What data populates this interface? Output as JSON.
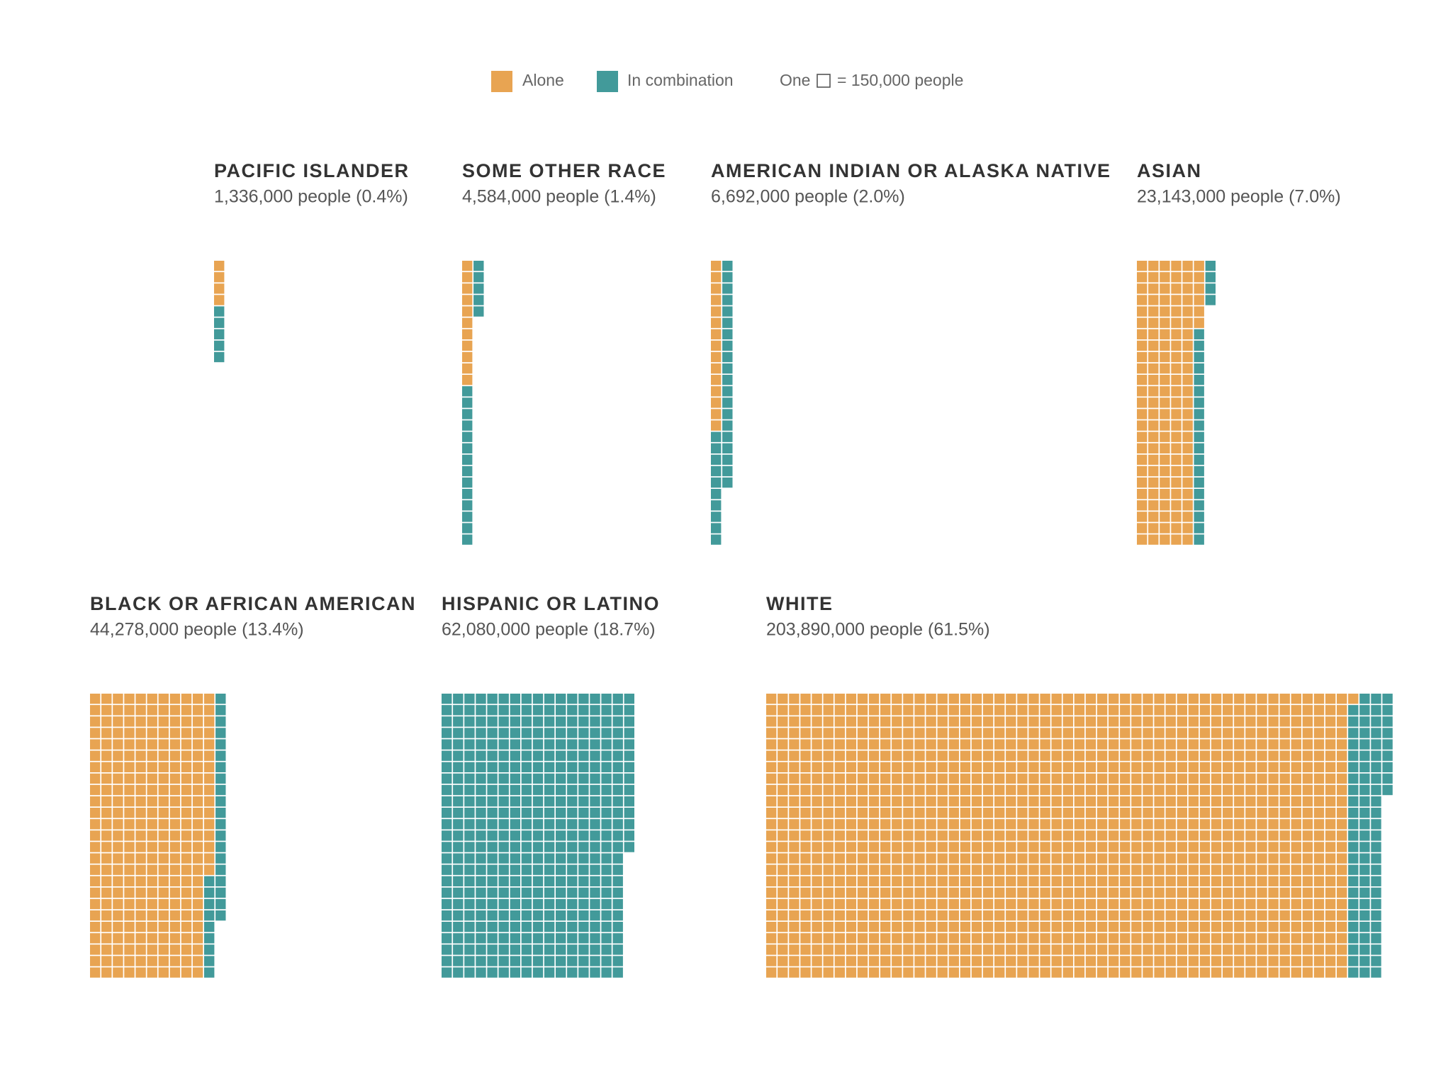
{
  "chart_data": {
    "type": "waffle",
    "series": [
      {
        "name": "Alone",
        "color": "#e8a452",
        "values": [
          600000,
          1650000,
          2250000,
          19650000,
          39900000,
          0,
          191400000
        ]
      },
      {
        "name": "In combination",
        "color": "#429a9a",
        "values": [
          750000,
          2850000,
          4500000,
          3450000,
          4350000,
          62100000,
          12450000
        ]
      }
    ],
    "unit_prefix": "One",
    "unit": {
      "value": 150000,
      "label": "= 150,000 people"
    },
    "categories": [
      "PACIFIC ISLANDER",
      "SOME OTHER RACE",
      "AMERICAN INDIAN OR ALASKA NATIVE",
      "ASIAN",
      "BLACK OR AFRICAN AMERICAN",
      "HISPANIC OR LATINO",
      "WHITE"
    ],
    "subtitles": [
      "1,336,000 people (0.4%)",
      "4,584,000 people (1.4%)",
      "6,692,000 people (2.0%)",
      "23,143,000 people (7.0%)",
      "44,278,000 people (13.4%)",
      "62,080,000 people (18.7%)",
      "203,890,000 people (61.5%)"
    ]
  }
}
